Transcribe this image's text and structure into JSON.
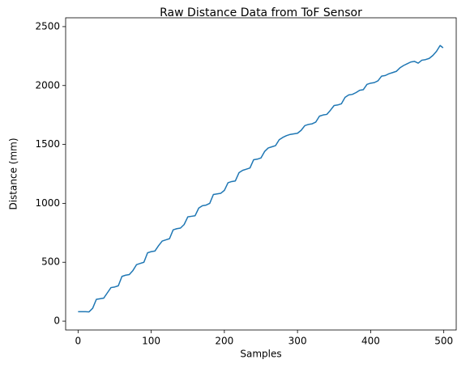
{
  "chart_data": {
    "type": "line",
    "title": "Raw Distance Data from ToF Sensor",
    "xlabel": "Samples",
    "ylabel": "Distance (mm)",
    "x": [
      0,
      5,
      10,
      15,
      20,
      25,
      30,
      35,
      40,
      45,
      50,
      55,
      60,
      65,
      70,
      75,
      80,
      85,
      90,
      95,
      100,
      105,
      110,
      115,
      120,
      125,
      130,
      135,
      140,
      145,
      150,
      155,
      160,
      165,
      170,
      175,
      180,
      185,
      190,
      195,
      200,
      205,
      210,
      215,
      220,
      225,
      230,
      235,
      240,
      245,
      250,
      255,
      260,
      265,
      270,
      275,
      280,
      285,
      290,
      295,
      300,
      305,
      310,
      315,
      320,
      325,
      330,
      335,
      340,
      345,
      350,
      355,
      360,
      365,
      370,
      375,
      380,
      385,
      390,
      395,
      400,
      405,
      410,
      415,
      420,
      425,
      430,
      435,
      440,
      445,
      450,
      455,
      460,
      465,
      470,
      475,
      480,
      485,
      490,
      495,
      499
    ],
    "series": [
      {
        "name": "Distance",
        "color": "#1f77b4",
        "values": [
          80,
          80,
          80,
          79,
          110,
          185,
          190,
          195,
          240,
          285,
          290,
          300,
          380,
          390,
          395,
          430,
          480,
          490,
          500,
          580,
          590,
          595,
          640,
          680,
          690,
          700,
          775,
          785,
          790,
          820,
          885,
          890,
          895,
          960,
          980,
          985,
          1000,
          1075,
          1080,
          1085,
          1110,
          1175,
          1185,
          1190,
          1260,
          1280,
          1290,
          1300,
          1370,
          1375,
          1385,
          1440,
          1470,
          1480,
          1490,
          1540,
          1560,
          1575,
          1585,
          1590,
          1595,
          1620,
          1660,
          1670,
          1675,
          1690,
          1740,
          1750,
          1755,
          1790,
          1830,
          1835,
          1845,
          1900,
          1920,
          1925,
          1940,
          1960,
          1965,
          2010,
          2020,
          2025,
          2040,
          2080,
          2085,
          2100,
          2110,
          2120,
          2150,
          2170,
          2185,
          2200,
          2205,
          2190,
          2215,
          2220,
          2230,
          2255,
          2290,
          2340,
          2320
        ]
      }
    ],
    "xlim": [
      -17,
      517
    ],
    "ylim": [
      -75,
      2575
    ],
    "xticks": [
      0,
      100,
      200,
      300,
      400,
      500
    ],
    "yticks": [
      0,
      500,
      1000,
      1500,
      2000,
      2500
    ],
    "grid": false
  }
}
